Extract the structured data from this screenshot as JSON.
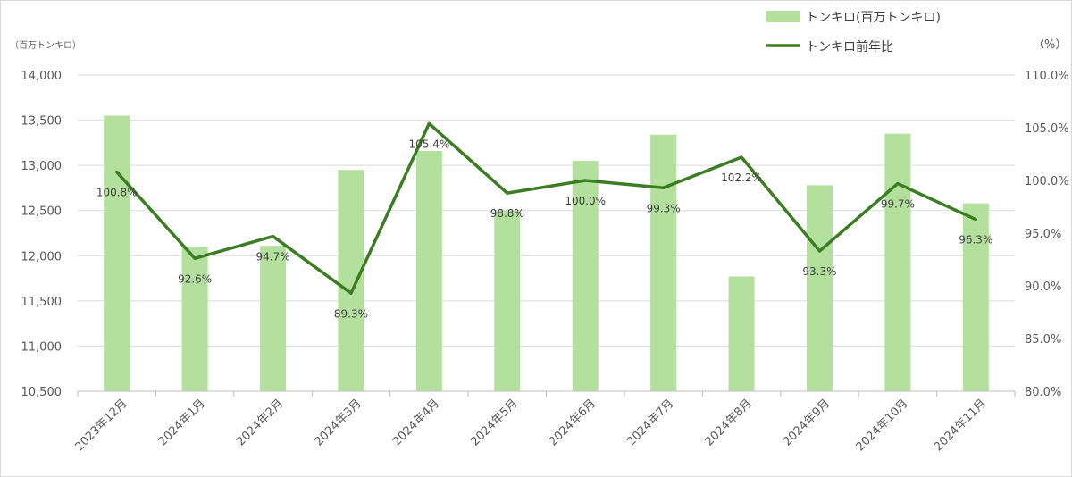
{
  "chart_data": {
    "type": "bar+line",
    "categories": [
      "2023年12月",
      "2024年1月",
      "2024年2月",
      "2024年3月",
      "2024年4月",
      "2024年5月",
      "2024年6月",
      "2024年7月",
      "2024年8月",
      "2024年9月",
      "2024年10月",
      "2024年11月"
    ],
    "series": [
      {
        "name": "トンキロ(百万トンキロ)",
        "type": "bar",
        "axis": "left",
        "color": "#b3e09d",
        "values": [
          13550,
          12100,
          12110,
          12950,
          13160,
          12500,
          13050,
          13340,
          11770,
          12780,
          13350,
          12580
        ]
      },
      {
        "name": "トンキロ前年比",
        "type": "line",
        "axis": "right",
        "color": "#3a7d22",
        "values": [
          100.8,
          92.6,
          94.7,
          89.3,
          105.4,
          98.8,
          100.0,
          99.3,
          102.2,
          93.3,
          99.7,
          96.3
        ],
        "labels": [
          "100.8%",
          "92.6%",
          "94.7%",
          "89.3%",
          "105.4%",
          "98.8%",
          "100.0%",
          "99.3%",
          "102.2%",
          "93.3%",
          "99.7%",
          "96.3%"
        ]
      }
    ],
    "y_left": {
      "unit_label": "（百万トンキロ）",
      "ylim": [
        10500,
        14000
      ],
      "ticks": [
        10500,
        11000,
        11500,
        12000,
        12500,
        13000,
        13500,
        14000
      ],
      "tick_labels": [
        "10,500",
        "11,000",
        "11,500",
        "12,000",
        "12,500",
        "13,000",
        "13,500",
        "14,000"
      ]
    },
    "y_right": {
      "unit_label": "（%）",
      "ylim": [
        80,
        110
      ],
      "ticks": [
        80,
        85,
        90,
        95,
        100,
        105,
        110
      ],
      "tick_labels": [
        "80.0%",
        "85.0%",
        "90.0%",
        "95.0%",
        "100.0%",
        "105.0%",
        "110.0%"
      ]
    },
    "grid": true,
    "legend_position": "top-right",
    "title": "",
    "xlabel": ""
  }
}
